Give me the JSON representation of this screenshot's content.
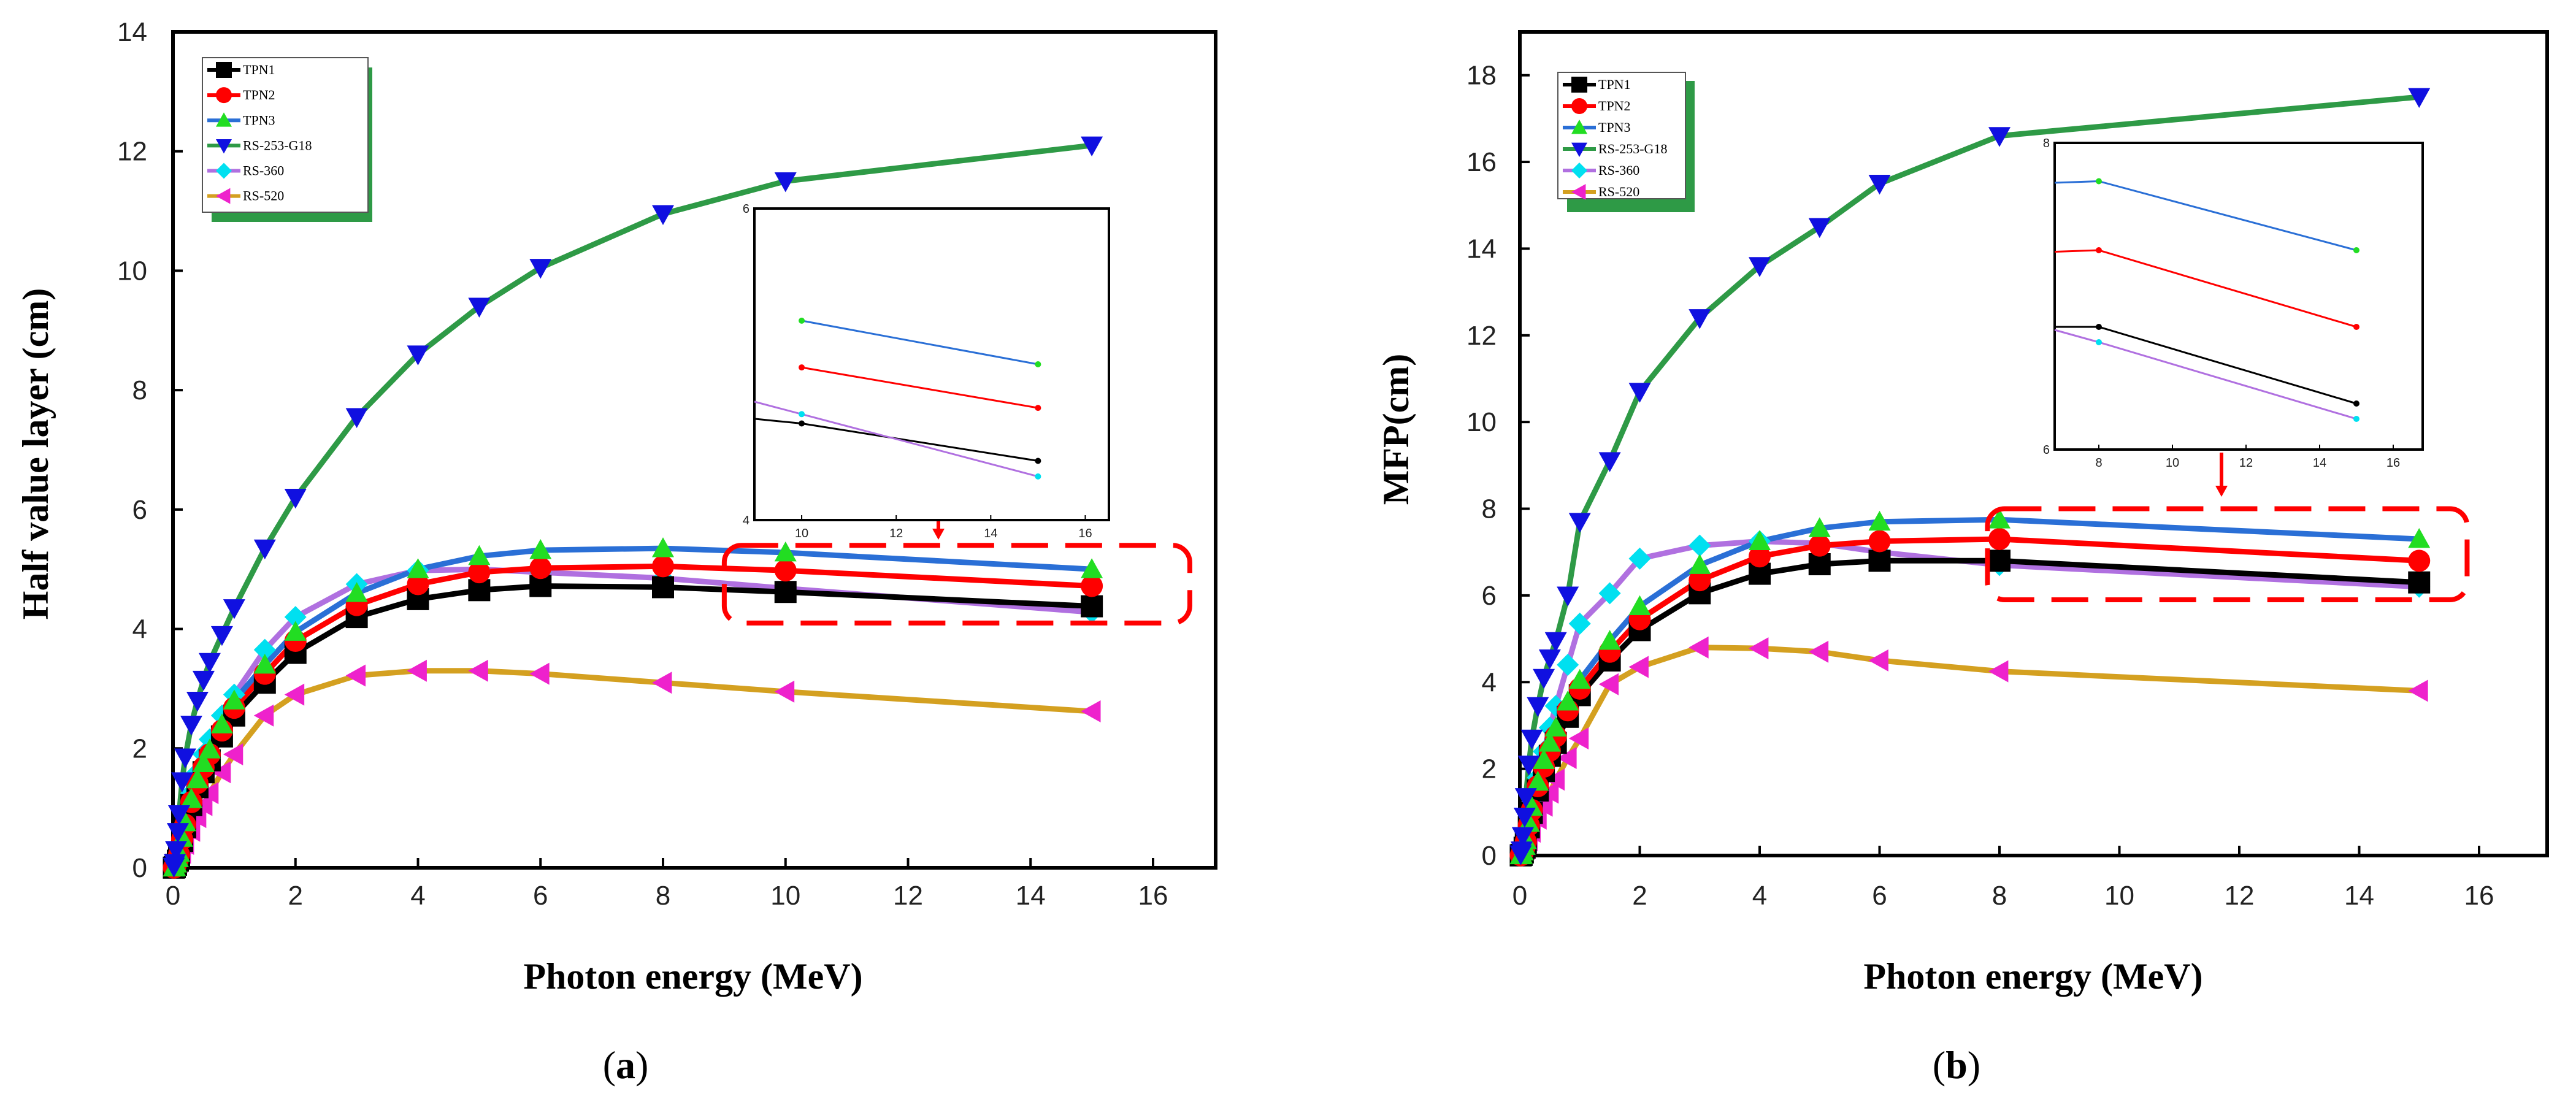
{
  "series_colors": {
    "TPN1": "#000000",
    "TPN2": "#ff0000",
    "TPN3": "#2a6fd6",
    "RS-253-G18": "#2e9a46",
    "RS-360": "#b070e0",
    "RS-520": "#d4a020"
  },
  "marker_colors": {
    "TPN1": "#000000",
    "TPN2": "#ff0000",
    "TPN3": "#22dd22",
    "RS-253-G18": "#1010e0",
    "RS-360": "#00e0f0",
    "RS-520": "#ee22cc"
  },
  "panels": [
    {
      "label_open": "(",
      "label_letter": "a",
      "label_close": ")",
      "accent": "#2e9a46",
      "highlight": "#ff0000"
    },
    {
      "label_open": "(",
      "label_letter": "b",
      "label_close": ")",
      "accent": "#2e9a46",
      "highlight": "#ff0000"
    }
  ],
  "chart_data": [
    {
      "type": "line",
      "title": "",
      "xlabel": "Photon energy (MeV)",
      "ylabel": "Half value layer (cm)",
      "xlim": [
        0,
        17
      ],
      "ylim": [
        0,
        14
      ],
      "xticks": [
        0,
        2,
        4,
        6,
        8,
        10,
        12,
        14,
        16
      ],
      "yticks": [
        0,
        2,
        4,
        6,
        8,
        10,
        12,
        14
      ],
      "x": [
        0.015,
        0.03,
        0.05,
        0.08,
        0.1,
        0.15,
        0.2,
        0.3,
        0.4,
        0.5,
        0.6,
        0.8,
        1,
        1.5,
        2,
        3,
        4,
        5,
        6,
        8,
        10,
        15
      ],
      "legend_position": "top-left",
      "series": [
        {
          "name": "TPN1",
          "marker": "square",
          "values": [
            0.002,
            0.01,
            0.05,
            0.12,
            0.2,
            0.45,
            0.68,
            1.05,
            1.35,
            1.6,
            1.8,
            2.2,
            2.55,
            3.1,
            3.6,
            4.2,
            4.5,
            4.65,
            4.72,
            4.7,
            4.62,
            4.38
          ]
        },
        {
          "name": "TPN2",
          "marker": "circle",
          "values": [
            0.002,
            0.01,
            0.06,
            0.14,
            0.22,
            0.48,
            0.72,
            1.1,
            1.42,
            1.68,
            1.9,
            2.3,
            2.68,
            3.25,
            3.8,
            4.4,
            4.75,
            4.95,
            5.02,
            5.05,
            4.98,
            4.72
          ]
        },
        {
          "name": "TPN3",
          "marker": "triangle-up",
          "values": [
            0.003,
            0.012,
            0.07,
            0.16,
            0.25,
            0.5,
            0.76,
            1.15,
            1.48,
            1.75,
            1.98,
            2.4,
            2.8,
            3.4,
            3.95,
            4.6,
            5.0,
            5.22,
            5.32,
            5.35,
            5.28,
            5.0
          ]
        },
        {
          "name": "RS-253-G18",
          "marker": "triangle-down",
          "values": [
            0.02,
            0.08,
            0.3,
            0.6,
            0.9,
            1.45,
            1.85,
            2.4,
            2.8,
            3.15,
            3.45,
            3.9,
            4.35,
            5.35,
            6.2,
            7.55,
            8.6,
            9.4,
            10.05,
            10.95,
            11.5,
            12.1
          ]
        },
        {
          "name": "RS-360",
          "marker": "diamond",
          "values": [
            0.003,
            0.015,
            0.08,
            0.18,
            0.28,
            0.55,
            0.82,
            1.25,
            1.6,
            1.9,
            2.15,
            2.55,
            2.9,
            3.65,
            4.2,
            4.75,
            4.98,
            5.0,
            4.95,
            4.85,
            4.68,
            4.28
          ]
        },
        {
          "name": "RS-520",
          "marker": "triangle-left",
          "values": [
            0.001,
            0.005,
            0.03,
            0.07,
            0.1,
            0.25,
            0.4,
            0.62,
            0.85,
            1.05,
            1.25,
            1.6,
            1.9,
            2.55,
            2.9,
            3.22,
            3.3,
            3.3,
            3.25,
            3.1,
            2.95,
            2.62
          ]
        }
      ],
      "inset": {
        "xlim": [
          9,
          16.5
        ],
        "ylim": [
          4,
          6
        ],
        "xticks": [
          10,
          12,
          14,
          16
        ],
        "yticks": [
          4,
          6
        ],
        "x": [
          10,
          15
        ],
        "series": [
          {
            "name": "TPN1",
            "values": [
              4.62,
              4.38
            ]
          },
          {
            "name": "TPN2",
            "values": [
              4.98,
              4.72
            ]
          },
          {
            "name": "TPN3",
            "values": [
              5.28,
              5.0
            ]
          },
          {
            "name": "RS-360",
            "values": [
              4.68,
              4.28
            ]
          }
        ],
        "extra_segments": [
          {
            "name": "RS-360",
            "x": [
              9,
              10
            ],
            "values": [
              4.76,
              4.68
            ]
          },
          {
            "name": "TPN1",
            "x": [
              9,
              10
            ],
            "values": [
              4.65,
              4.62
            ]
          }
        ]
      },
      "highlight_box": {
        "x": [
          9,
          16.6
        ],
        "y": [
          4.1,
          5.4
        ]
      }
    },
    {
      "type": "line",
      "title": "",
      "xlabel": "Photon energy (MeV)",
      "ylabel": "MFP(cm)",
      "xlim": [
        0,
        17
      ],
      "ylim": [
        0,
        19
      ],
      "xticks": [
        0,
        2,
        4,
        6,
        8,
        10,
        12,
        14,
        16
      ],
      "yticks": [
        0,
        2,
        4,
        6,
        8,
        10,
        12,
        14,
        16,
        18
      ],
      "x": [
        0.015,
        0.03,
        0.05,
        0.08,
        0.1,
        0.15,
        0.2,
        0.3,
        0.4,
        0.5,
        0.6,
        0.8,
        1,
        1.5,
        2,
        3,
        4,
        5,
        6,
        8,
        15
      ],
      "legend_position": "top-left",
      "series": [
        {
          "name": "TPN1",
          "marker": "square",
          "values": [
            0.003,
            0.015,
            0.07,
            0.18,
            0.3,
            0.65,
            0.98,
            1.5,
            1.95,
            2.3,
            2.6,
            3.2,
            3.7,
            4.5,
            5.2,
            6.05,
            6.5,
            6.72,
            6.8,
            6.8,
            6.3
          ]
        },
        {
          "name": "TPN2",
          "marker": "circle",
          "values": [
            0.003,
            0.016,
            0.08,
            0.2,
            0.32,
            0.7,
            1.05,
            1.6,
            2.05,
            2.42,
            2.75,
            3.35,
            3.85,
            4.7,
            5.45,
            6.35,
            6.9,
            7.15,
            7.25,
            7.3,
            6.8
          ]
        },
        {
          "name": "TPN3",
          "marker": "triangle-up",
          "values": [
            0.004,
            0.018,
            0.09,
            0.22,
            0.35,
            0.75,
            1.12,
            1.7,
            2.2,
            2.6,
            2.95,
            3.55,
            4.05,
            4.95,
            5.75,
            6.7,
            7.25,
            7.55,
            7.7,
            7.75,
            7.3
          ]
        },
        {
          "name": "RS-253-G18",
          "marker": "triangle-down",
          "values": [
            0.03,
            0.12,
            0.45,
            0.9,
            1.35,
            2.1,
            2.7,
            3.45,
            4.1,
            4.55,
            4.95,
            6.0,
            7.7,
            9.1,
            10.7,
            12.4,
            13.6,
            14.5,
            15.5,
            16.6,
            17.5
          ]
        },
        {
          "name": "RS-360",
          "marker": "diamond",
          "values": [
            0.005,
            0.02,
            0.1,
            0.25,
            0.38,
            0.8,
            1.2,
            1.8,
            2.4,
            2.95,
            3.45,
            4.4,
            5.35,
            6.05,
            6.85,
            7.15,
            7.25,
            7.2,
            7.0,
            6.7,
            6.2
          ]
        },
        {
          "name": "RS-520",
          "marker": "triangle-left",
          "values": [
            0.002,
            0.008,
            0.04,
            0.1,
            0.15,
            0.35,
            0.55,
            0.85,
            1.15,
            1.45,
            1.75,
            2.25,
            2.7,
            3.95,
            4.35,
            4.8,
            4.78,
            4.7,
            4.5,
            4.25,
            3.8
          ]
        }
      ],
      "inset": {
        "xlim": [
          6.8,
          16.8
        ],
        "ylim": [
          6,
          8
        ],
        "xticks": [
          8,
          10,
          12,
          14,
          16
        ],
        "yticks": [
          6,
          8
        ],
        "x": [
          8,
          15
        ],
        "series": [
          {
            "name": "TPN1",
            "values": [
              6.8,
              6.3
            ]
          },
          {
            "name": "TPN2",
            "values": [
              7.3,
              6.8
            ]
          },
          {
            "name": "TPN3",
            "values": [
              7.75,
              7.3
            ]
          },
          {
            "name": "RS-360",
            "values": [
              6.7,
              6.2
            ]
          }
        ],
        "extra_segments": [
          {
            "name": "RS-360",
            "x": [
              6.8,
              8
            ],
            "values": [
              6.78,
              6.7
            ]
          },
          {
            "name": "TPN1",
            "x": [
              6.8,
              8
            ],
            "values": [
              6.8,
              6.8
            ]
          },
          {
            "name": "TPN2",
            "x": [
              6.8,
              8
            ],
            "values": [
              7.29,
              7.3
            ]
          },
          {
            "name": "TPN3",
            "x": [
              6.8,
              8
            ],
            "values": [
              7.74,
              7.75
            ]
          }
        ]
      },
      "highlight_box": {
        "x": [
          7.8,
          15.8
        ],
        "y": [
          5.9,
          8.0
        ]
      }
    }
  ]
}
